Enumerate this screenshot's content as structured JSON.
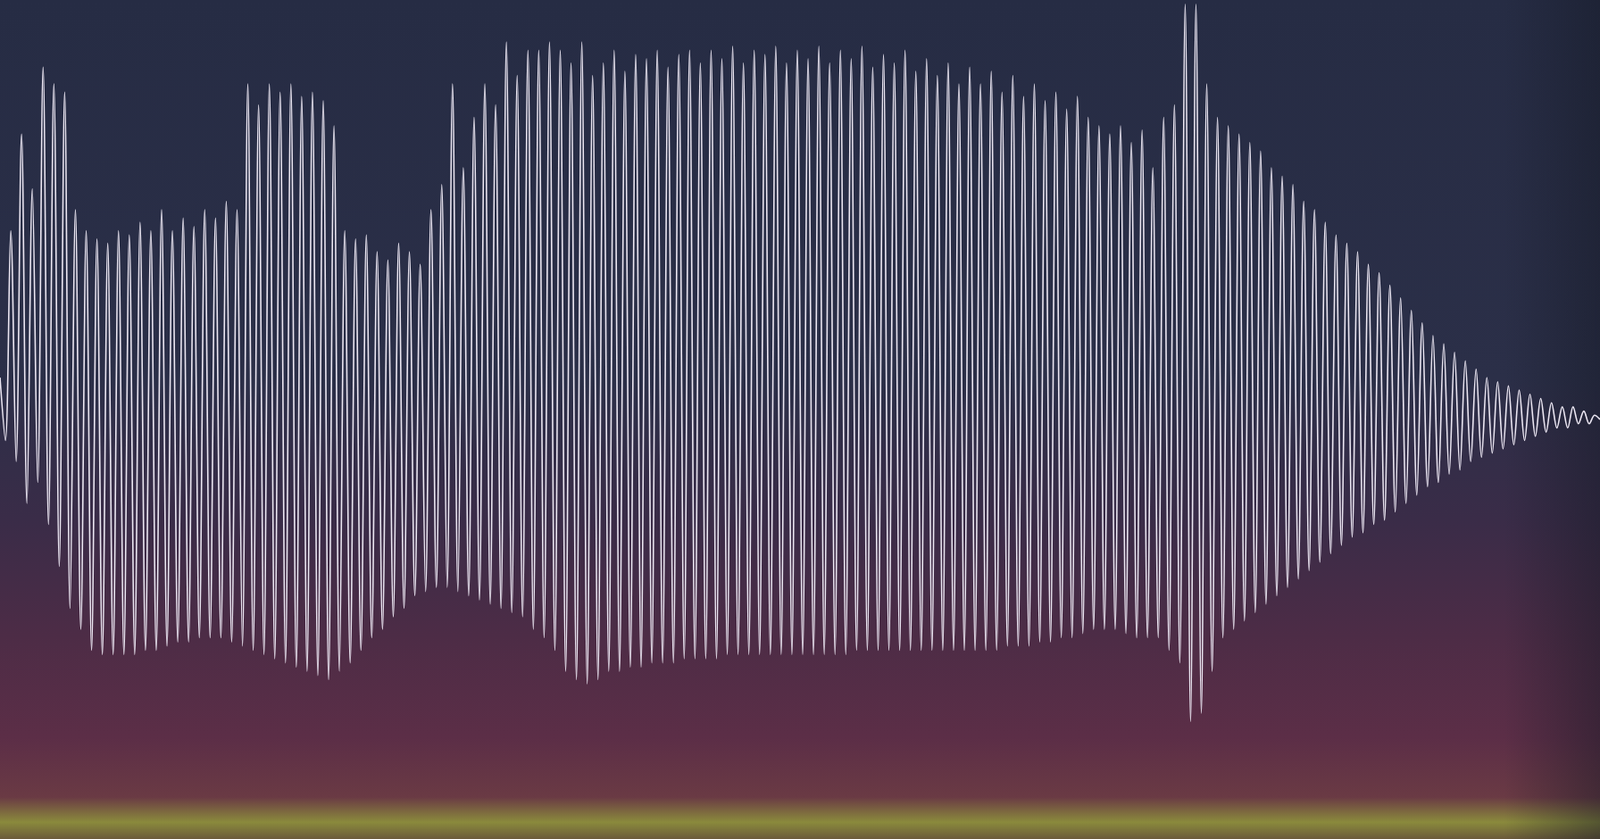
{
  "chart_data": {
    "type": "line",
    "color": "#ebe6f2",
    "grid": false,
    "tick_labels": false,
    "xlim": [
      0,
      297
    ],
    "ylim": [
      -1,
      1
    ],
    "values": [
      0.1,
      -0.05,
      0.45,
      -0.1,
      0.68,
      -0.2,
      0.55,
      -0.15,
      0.84,
      -0.25,
      0.8,
      -0.35,
      0.78,
      -0.45,
      0.5,
      -0.5,
      0.45,
      -0.55,
      0.43,
      -0.56,
      0.42,
      -0.56,
      0.45,
      -0.56,
      0.44,
      -0.56,
      0.47,
      -0.55,
      0.45,
      -0.55,
      0.5,
      -0.54,
      0.45,
      -0.53,
      0.48,
      -0.53,
      0.46,
      -0.52,
      0.5,
      -0.52,
      0.48,
      -0.52,
      0.52,
      -0.53,
      0.5,
      -0.54,
      0.8,
      -0.55,
      0.75,
      -0.56,
      0.8,
      -0.57,
      0.78,
      -0.58,
      0.8,
      -0.59,
      0.77,
      -0.6,
      0.78,
      -0.61,
      0.76,
      -0.62,
      0.7,
      -0.6,
      0.45,
      -0.58,
      0.43,
      -0.55,
      0.44,
      -0.52,
      0.4,
      -0.5,
      0.38,
      -0.47,
      0.42,
      -0.45,
      0.4,
      -0.42,
      0.37,
      -0.41,
      0.5,
      -0.4,
      0.56,
      -0.4,
      0.8,
      -0.41,
      0.6,
      -0.42,
      0.72,
      -0.43,
      0.8,
      -0.44,
      0.75,
      -0.45,
      0.9,
      -0.46,
      0.82,
      -0.47,
      0.88,
      -0.5,
      0.88,
      -0.52,
      0.9,
      -0.55,
      0.88,
      -0.6,
      0.85,
      -0.62,
      0.9,
      -0.63,
      0.82,
      -0.62,
      0.85,
      -0.6,
      0.88,
      -0.6,
      0.83,
      -0.59,
      0.87,
      -0.59,
      0.86,
      -0.58,
      0.88,
      -0.58,
      0.84,
      -0.58,
      0.87,
      -0.57,
      0.88,
      -0.57,
      0.85,
      -0.57,
      0.88,
      -0.57,
      0.86,
      -0.56,
      0.89,
      -0.56,
      0.85,
      -0.56,
      0.88,
      -0.56,
      0.87,
      -0.56,
      0.89,
      -0.56,
      0.85,
      -0.56,
      0.88,
      -0.56,
      0.86,
      -0.56,
      0.89,
      -0.56,
      0.85,
      -0.56,
      0.88,
      -0.56,
      0.86,
      -0.55,
      0.89,
      -0.55,
      0.84,
      -0.55,
      0.87,
      -0.55,
      0.85,
      -0.55,
      0.88,
      -0.55,
      0.83,
      -0.55,
      0.86,
      -0.55,
      0.82,
      -0.55,
      0.85,
      -0.55,
      0.8,
      -0.55,
      0.84,
      -0.55,
      0.8,
      -0.55,
      0.83,
      -0.55,
      0.78,
      -0.54,
      0.82,
      -0.54,
      0.77,
      -0.54,
      0.8,
      -0.53,
      0.76,
      -0.53,
      0.78,
      -0.52,
      0.74,
      -0.52,
      0.77,
      -0.51,
      0.72,
      -0.5,
      0.7,
      -0.5,
      0.68,
      -0.5,
      0.7,
      -0.51,
      0.66,
      -0.52,
      0.69,
      -0.52,
      0.6,
      -0.52,
      0.72,
      -0.55,
      0.75,
      -0.58,
      0.99,
      -0.72,
      0.99,
      -0.7,
      0.8,
      -0.6,
      0.72,
      -0.52,
      0.7,
      -0.5,
      0.68,
      -0.48,
      0.66,
      -0.46,
      0.64,
      -0.44,
      0.6,
      -0.42,
      0.58,
      -0.4,
      0.56,
      -0.38,
      0.52,
      -0.36,
      0.5,
      -0.34,
      0.47,
      -0.32,
      0.44,
      -0.3,
      0.42,
      -0.28,
      0.4,
      -0.27,
      0.37,
      -0.25,
      0.35,
      -0.24,
      0.32,
      -0.22,
      0.29,
      -0.2,
      0.26,
      -0.18,
      0.23,
      -0.16,
      0.2,
      -0.15,
      0.18,
      -0.13,
      0.16,
      -0.12,
      0.14,
      -0.1,
      0.12,
      -0.09,
      0.1,
      -0.08,
      0.09,
      -0.07,
      0.08,
      -0.06,
      0.07,
      -0.05,
      0.06,
      -0.04,
      0.05,
      -0.03,
      0.04,
      -0.02,
      0.03,
      -0.02,
      0.03,
      -0.01,
      0.02,
      -0.01,
      0.01,
      0
    ]
  }
}
